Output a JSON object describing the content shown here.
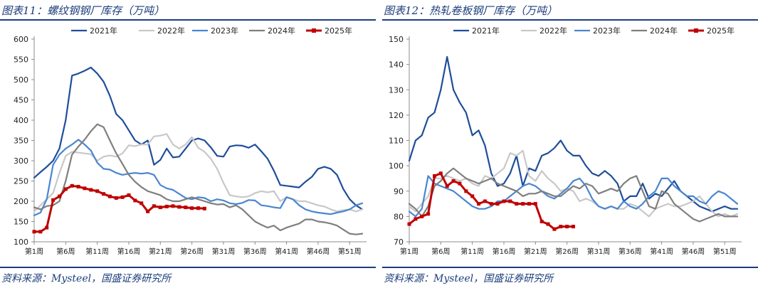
{
  "chart_data": [
    {
      "type": "line",
      "title": "图表11：螺纹钢钢厂库存（万吨）",
      "source": "资料来源：Mysteel，国盛证券研究所",
      "xlabel": "",
      "ylabel": "",
      "ylim": [
        100,
        600
      ],
      "yticks": [
        100,
        150,
        200,
        250,
        300,
        350,
        400,
        450,
        500,
        550,
        600
      ],
      "xticks": [
        {
          "week": 1,
          "label": "第1周"
        },
        {
          "week": 6,
          "label": "第6周"
        },
        {
          "week": 11,
          "label": "第11周"
        },
        {
          "week": 16,
          "label": "第16周"
        },
        {
          "week": 21,
          "label": "第21周"
        },
        {
          "week": 26,
          "label": "第26周"
        },
        {
          "week": 31,
          "label": "第31周"
        },
        {
          "week": 36,
          "label": "第36周"
        },
        {
          "week": 41,
          "label": "第41周"
        },
        {
          "week": 46,
          "label": "第46周"
        },
        {
          "week": 51,
          "label": "第51周"
        }
      ],
      "legend_position": "top",
      "series": [
        {
          "name": "2021年",
          "color": "#1f4e9a",
          "width": 2.2,
          "marker": false,
          "values": [
            258,
            272,
            285,
            300,
            330,
            400,
            510,
            515,
            522,
            530,
            515,
            495,
            460,
            415,
            400,
            375,
            350,
            340,
            350,
            290,
            302,
            330,
            308,
            310,
            330,
            350,
            355,
            350,
            333,
            312,
            310,
            335,
            338,
            337,
            332,
            340,
            323,
            305,
            275,
            240,
            238,
            236,
            234,
            248,
            260,
            280,
            285,
            280,
            265,
            230,
            205,
            190,
            180
          ]
        },
        {
          "name": "2022年",
          "color": "#c8c8c8",
          "width": 2.2,
          "marker": false,
          "values": [
            175,
            190,
            205,
            220,
            270,
            312,
            322,
            320,
            318,
            316,
            300,
            310,
            313,
            310,
            318,
            338,
            336,
            340,
            340,
            360,
            362,
            366,
            340,
            330,
            340,
            358,
            332,
            322,
            305,
            280,
            245,
            215,
            212,
            210,
            212,
            220,
            225,
            222,
            225,
            200,
            210,
            205,
            200,
            200,
            195,
            190,
            187,
            180,
            175,
            178,
            180,
            175,
            180
          ]
        },
        {
          "name": "2023年",
          "color": "#4a86d0",
          "width": 2.2,
          "marker": false,
          "values": [
            165,
            172,
            205,
            290,
            315,
            330,
            340,
            352,
            340,
            325,
            295,
            280,
            278,
            270,
            265,
            268,
            270,
            268,
            270,
            265,
            240,
            232,
            228,
            218,
            208,
            205,
            210,
            208,
            200,
            205,
            202,
            195,
            193,
            196,
            203,
            202,
            190,
            188,
            185,
            183,
            210,
            205,
            190,
            180,
            175,
            172,
            170,
            168,
            172,
            175,
            180,
            190,
            195
          ]
        },
        {
          "name": "2024年",
          "color": "#7f7f7f",
          "width": 2.2,
          "marker": false,
          "values": [
            185,
            180,
            188,
            190,
            200,
            250,
            315,
            335,
            352,
            373,
            390,
            383,
            350,
            318,
            292,
            265,
            248,
            235,
            225,
            220,
            215,
            205,
            200,
            200,
            205,
            210,
            205,
            200,
            195,
            192,
            193,
            185,
            190,
            180,
            165,
            150,
            142,
            135,
            140,
            128,
            135,
            140,
            145,
            155,
            155,
            150,
            148,
            145,
            140,
            130,
            120,
            118,
            120
          ]
        },
        {
          "name": "2025年",
          "color": "#c00000",
          "width": 3,
          "marker": true,
          "values": [
            125,
            125,
            135,
            203,
            212,
            230,
            238,
            236,
            232,
            228,
            225,
            218,
            212,
            208,
            210,
            215,
            202,
            195,
            175,
            188,
            185,
            187,
            188,
            186,
            185,
            183,
            183,
            182
          ]
        }
      ]
    },
    {
      "type": "line",
      "title": "图表12：热轧卷板钢厂库存（万吨）",
      "source": "资料来源：Mysteel，国盛证券研究所",
      "xlabel": "",
      "ylabel": "",
      "ylim": [
        70,
        150
      ],
      "yticks": [
        70,
        80,
        90,
        100,
        110,
        120,
        130,
        140,
        150
      ],
      "xticks": [
        {
          "week": 1,
          "label": "第1周"
        },
        {
          "week": 6,
          "label": "第6周"
        },
        {
          "week": 11,
          "label": "第11周"
        },
        {
          "week": 16,
          "label": "第16周"
        },
        {
          "week": 21,
          "label": "第21周"
        },
        {
          "week": 26,
          "label": "第26周"
        },
        {
          "week": 31,
          "label": "第31周"
        },
        {
          "week": 36,
          "label": "第36周"
        },
        {
          "week": 41,
          "label": "第41周"
        },
        {
          "week": 46,
          "label": "第46周"
        },
        {
          "week": 51,
          "label": "第51周"
        }
      ],
      "legend_position": "top",
      "series": [
        {
          "name": "2021年",
          "color": "#1f4e9a",
          "width": 2.2,
          "marker": false,
          "values": [
            102,
            110,
            112,
            119,
            121,
            130,
            143,
            130,
            125,
            121,
            112,
            114,
            108,
            97,
            92,
            93,
            97,
            104,
            92,
            99,
            98,
            104,
            105,
            107,
            110,
            106,
            104,
            104,
            100,
            97,
            96,
            98,
            96,
            93,
            86,
            88,
            88,
            93,
            87,
            89,
            88,
            91,
            94,
            90,
            88,
            86,
            84,
            83,
            82,
            83,
            84,
            83,
            83
          ]
        },
        {
          "name": "2022年",
          "color": "#c8c8c8",
          "width": 2.2,
          "marker": false,
          "values": [
            84,
            82,
            85,
            88,
            95,
            95,
            96,
            95,
            94,
            95,
            93,
            92,
            96,
            95,
            97,
            99,
            105,
            104,
            106,
            96,
            94,
            98,
            95,
            93,
            90,
            91,
            90,
            86,
            87,
            86,
            84,
            83,
            84,
            83,
            83,
            85,
            84,
            82,
            80,
            83,
            84,
            85,
            84,
            84,
            85,
            86,
            88,
            85,
            82,
            80,
            81,
            80,
            81
          ]
        },
        {
          "name": "2023年",
          "color": "#4a86d0",
          "width": 2.2,
          "marker": false,
          "values": [
            82,
            80,
            83,
            96,
            93,
            92,
            91,
            90,
            88,
            86,
            84,
            83,
            83,
            84,
            86,
            86,
            88,
            90,
            92,
            93,
            92,
            90,
            88,
            87,
            89,
            91,
            94,
            95,
            92,
            87,
            84,
            83,
            84,
            83,
            86,
            84,
            83,
            85,
            88,
            90,
            95,
            95,
            92,
            90,
            88,
            88,
            86,
            85,
            88,
            90,
            89,
            87,
            85
          ]
        },
        {
          "name": "2024年",
          "color": "#7f7f7f",
          "width": 2.2,
          "marker": false,
          "values": [
            85,
            83,
            80,
            84,
            92,
            94,
            97,
            99,
            97,
            95,
            94,
            93,
            94,
            95,
            93,
            92,
            91,
            90,
            88,
            89,
            89,
            90,
            89,
            88,
            88,
            90,
            92,
            91,
            93,
            92,
            89,
            90,
            91,
            90,
            93,
            95,
            96,
            90,
            84,
            83,
            90,
            89,
            85,
            83,
            81,
            79,
            78,
            79,
            80,
            81,
            80,
            80,
            80
          ]
        },
        {
          "name": "2025年",
          "color": "#c00000",
          "width": 3,
          "marker": true,
          "values": [
            77,
            79,
            80,
            81,
            96,
            97,
            92,
            94,
            93,
            90,
            88,
            85,
            86,
            85,
            85,
            86,
            86,
            85,
            85,
            85,
            85,
            78,
            77,
            75,
            76,
            76,
            76
          ]
        }
      ]
    }
  ]
}
